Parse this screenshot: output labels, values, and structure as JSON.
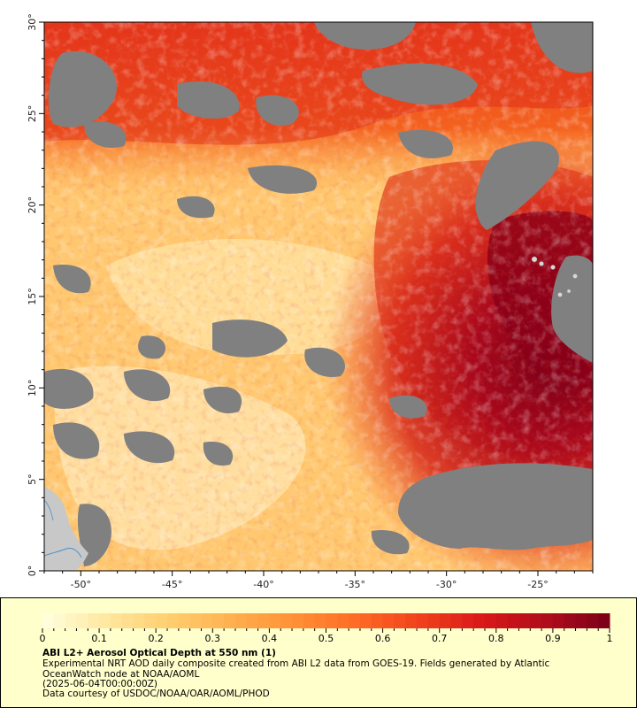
{
  "map": {
    "lon_ticks": [
      "-50°",
      "-45°",
      "-40°",
      "-35°",
      "-30°",
      "-25°"
    ],
    "lat_ticks": [
      "0°",
      "5°",
      "10°",
      "15°",
      "20°",
      "25°",
      "30°"
    ],
    "lon_range": [
      -52,
      -22
    ],
    "lat_range": [
      0,
      30
    ],
    "colors": {
      "land": "#c8c8c8",
      "no_data": "#808080",
      "river": "#4a90c8"
    }
  },
  "colorbar": {
    "tick_labels": [
      "0",
      "0.1",
      "0.2",
      "0.3",
      "0.4",
      "0.5",
      "0.6",
      "0.7",
      "0.8",
      "0.9",
      "1"
    ],
    "range": [
      0,
      1
    ],
    "colors": [
      "#ffffe0",
      "#ffe8a0",
      "#ffcf70",
      "#ffb050",
      "#ff9035",
      "#ff6a25",
      "#f0401c",
      "#d81818",
      "#b00c1c",
      "#7a0018"
    ]
  },
  "legend": {
    "title": "ABI L2+ Aerosol Optical Depth at 550 nm (1)",
    "description": "Experimental NRT AOD daily composite created from ABI L2 data from GOES-19. Fields generated by Atlantic OceanWatch node at NOAA/AOML",
    "date": "(2025-06-04T00:00:00Z)",
    "credit": "Data courtesy of USDOC/NOAA/OAR/AOML/PHOD",
    "background": "#ffffcc"
  }
}
